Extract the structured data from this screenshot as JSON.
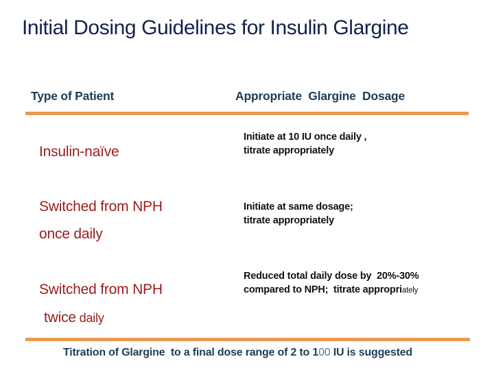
{
  "slide": {
    "title": "Initial Dosing Guidelines for Insulin Glargine"
  },
  "colors": {
    "title_text": "#12214D",
    "header_text": "#1F3C55",
    "patient_label_text": "#9B1B1B",
    "dosage_text": "#111111",
    "accent_rule": "#EB9950",
    "caption_text": "#1F3C55",
    "background": "#FFFFFF"
  },
  "table": {
    "headers": {
      "patient": "Type of Patient",
      "dosage": "Appropriate  Glargine  Dosage"
    },
    "rows": [
      {
        "patient_line1": "Insulin-naïve",
        "dosage_line1": "Initiate at 10 IU once daily ,",
        "dosage_line2": "titrate appropriately"
      },
      {
        "patient_line1": "Switched from NPH",
        "patient_line2": "once daily",
        "dosage_line1": "Initiate at same dosage;",
        "dosage_line2": "titrate appropriately"
      },
      {
        "patient_line1": "Switched from NPH",
        "patient_line2_word1": "twice",
        "patient_line2_word2": " daily",
        "dosage_line1": "Reduced total daily dose by  20%-30%",
        "dosage_line2_main": "compared to NPH;  titrate appropri",
        "dosage_line2_tail": "ately"
      }
    ]
  },
  "footer": {
    "caption_part1": "Titration of Glargine  to a final dose range of 2 to 1",
    "caption_part2": "00",
    "caption_part3": " IU is suggested"
  }
}
